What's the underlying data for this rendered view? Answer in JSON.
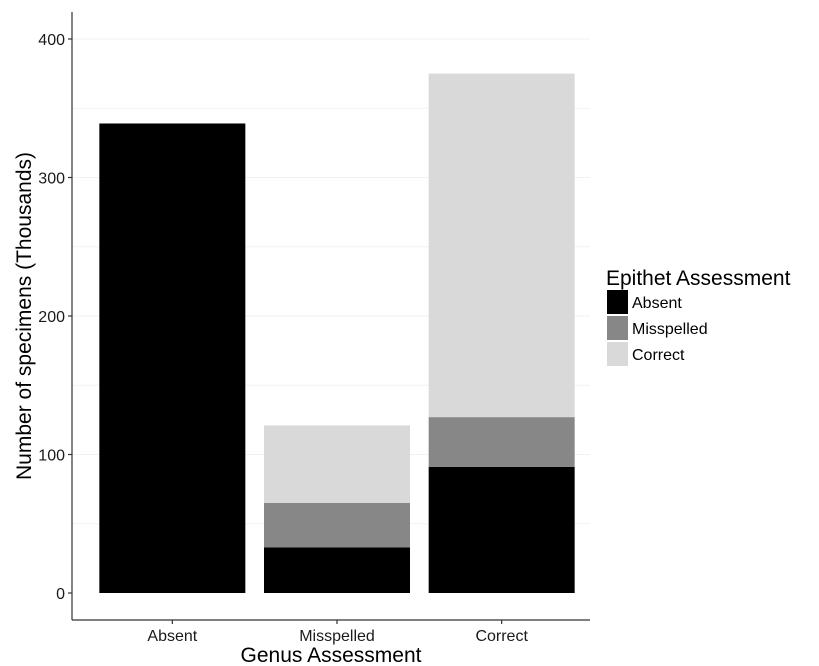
{
  "chart_data": {
    "type": "bar",
    "stacked": true,
    "categories": [
      "Absent",
      "Misspelled",
      "Correct"
    ],
    "series": [
      {
        "name": "Absent",
        "color": "#000000",
        "values": [
          339,
          33,
          91
        ]
      },
      {
        "name": "Misspelled",
        "color": "#878787",
        "values": [
          0,
          32,
          36
        ]
      },
      {
        "name": "Correct",
        "color": "#d9d9d9",
        "values": [
          0,
          56,
          248
        ]
      }
    ],
    "title": "",
    "xlabel": "Genus Assessment",
    "ylabel": "Number of specimens (Thousands)",
    "ylim": [
      0,
      420
    ],
    "yticks": [
      0,
      100,
      200,
      300,
      400
    ],
    "ytick_labels": [
      "0",
      "100",
      "200",
      "300",
      "400"
    ],
    "grid": true,
    "legend": {
      "title": "Epithet Assessment",
      "position": "right",
      "entries": [
        "Absent",
        "Misspelled",
        "Correct"
      ]
    }
  }
}
